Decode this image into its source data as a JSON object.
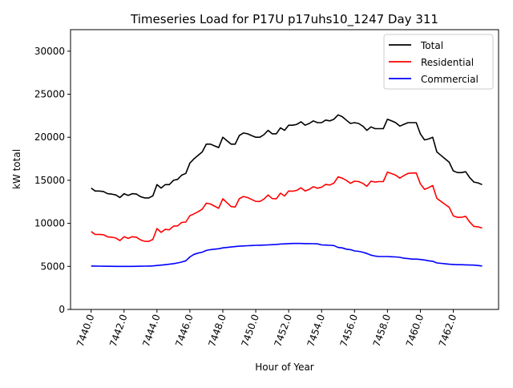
{
  "chart_data": {
    "type": "line",
    "title": "Timeseries Load for P17U p17uhs10_1247  Day 311",
    "xlabel": "Hour of Year",
    "ylabel": "kW total",
    "xlim": [
      7438.75,
      7464.75
    ],
    "ylim": [
      0,
      32500
    ],
    "xticks": [
      7440,
      7442,
      7444,
      7446,
      7448,
      7450,
      7452,
      7454,
      7456,
      7458,
      7460,
      7462
    ],
    "xtick_labels": [
      "7440.0",
      "7442.0",
      "7444.0",
      "7446.0",
      "7448.0",
      "7450.0",
      "7452.0",
      "7454.0",
      "7456.0",
      "7458.0",
      "7460.0",
      "7462.0"
    ],
    "yticks": [
      0,
      5000,
      10000,
      15000,
      20000,
      25000,
      30000
    ],
    "ytick_labels": [
      "0",
      "5000",
      "10000",
      "15000",
      "20000",
      "25000",
      "30000"
    ],
    "grid": false,
    "legend_position": "top-right",
    "x_start": 7440,
    "x_step": 0.25,
    "series": [
      {
        "name": "Total",
        "color": "#000000",
        "values": [
          14100,
          13750,
          13750,
          13700,
          13450,
          13400,
          13300,
          13000,
          13450,
          13250,
          13450,
          13400,
          13100,
          12950,
          12950,
          13200,
          14500,
          14100,
          14500,
          14500,
          15000,
          15100,
          15600,
          15800,
          17000,
          17500,
          17900,
          18300,
          19200,
          19200,
          19000,
          18800,
          20000,
          19600,
          19200,
          19200,
          20200,
          20500,
          20400,
          20200,
          20000,
          20000,
          20300,
          20800,
          20400,
          20400,
          21100,
          20800,
          21400,
          21400,
          21500,
          21800,
          21400,
          21600,
          21900,
          21700,
          21700,
          22000,
          21900,
          22100,
          22600,
          22400,
          22000,
          21600,
          21700,
          21600,
          21300,
          20800,
          21200,
          21000,
          21000,
          21000,
          22100,
          21900,
          21700,
          21300,
          21500,
          21700,
          21700,
          21700,
          20400,
          19700,
          19800,
          20000,
          18300,
          17900,
          17500,
          17100,
          16100,
          15900,
          15900,
          16000,
          15300,
          14800,
          14700,
          14500
        ]
      },
      {
        "name": "Residential",
        "color": "#ff0000",
        "values": [
          9050,
          8710,
          8720,
          8680,
          8440,
          8390,
          8300,
          8000,
          8450,
          8250,
          8450,
          8390,
          8080,
          7920,
          7910,
          8140,
          9400,
          8950,
          9300,
          9250,
          9680,
          9700,
          10100,
          10150,
          10900,
          11100,
          11350,
          11650,
          12350,
          12250,
          12000,
          11750,
          12850,
          12400,
          11950,
          11900,
          12850,
          13120,
          13000,
          12780,
          12550,
          12540,
          12820,
          13300,
          12880,
          12850,
          13500,
          13180,
          13750,
          13740,
          13840,
          14140,
          13750,
          13950,
          14260,
          14080,
          14200,
          14520,
          14450,
          14680,
          15400,
          15250,
          15000,
          14650,
          14900,
          14850,
          14650,
          14300,
          14900,
          14800,
          14850,
          14850,
          15950,
          15780,
          15600,
          15250,
          15550,
          15800,
          15850,
          15850,
          14600,
          13950,
          14150,
          14400,
          12900,
          12550,
          12200,
          11850,
          10880,
          10700,
          10700,
          10820,
          10140,
          9650,
          9600,
          9450
        ]
      },
      {
        "name": "Commercial",
        "color": "#0000ff",
        "values": [
          5050,
          5040,
          5030,
          5020,
          5010,
          5010,
          5000,
          5000,
          5000,
          5000,
          5000,
          5010,
          5020,
          5030,
          5040,
          5060,
          5100,
          5150,
          5200,
          5250,
          5320,
          5400,
          5500,
          5650,
          6100,
          6400,
          6550,
          6650,
          6850,
          6950,
          7000,
          7050,
          7150,
          7200,
          7250,
          7300,
          7350,
          7380,
          7400,
          7420,
          7450,
          7460,
          7480,
          7500,
          7520,
          7550,
          7600,
          7620,
          7650,
          7660,
          7660,
          7660,
          7650,
          7650,
          7640,
          7620,
          7500,
          7480,
          7450,
          7420,
          7200,
          7150,
          7000,
          6950,
          6800,
          6750,
          6650,
          6500,
          6300,
          6200,
          6150,
          6150,
          6150,
          6120,
          6100,
          6050,
          5950,
          5900,
          5850,
          5850,
          5800,
          5750,
          5650,
          5600,
          5400,
          5350,
          5300,
          5250,
          5220,
          5200,
          5200,
          5180,
          5160,
          5150,
          5100,
          5050
        ]
      }
    ]
  }
}
